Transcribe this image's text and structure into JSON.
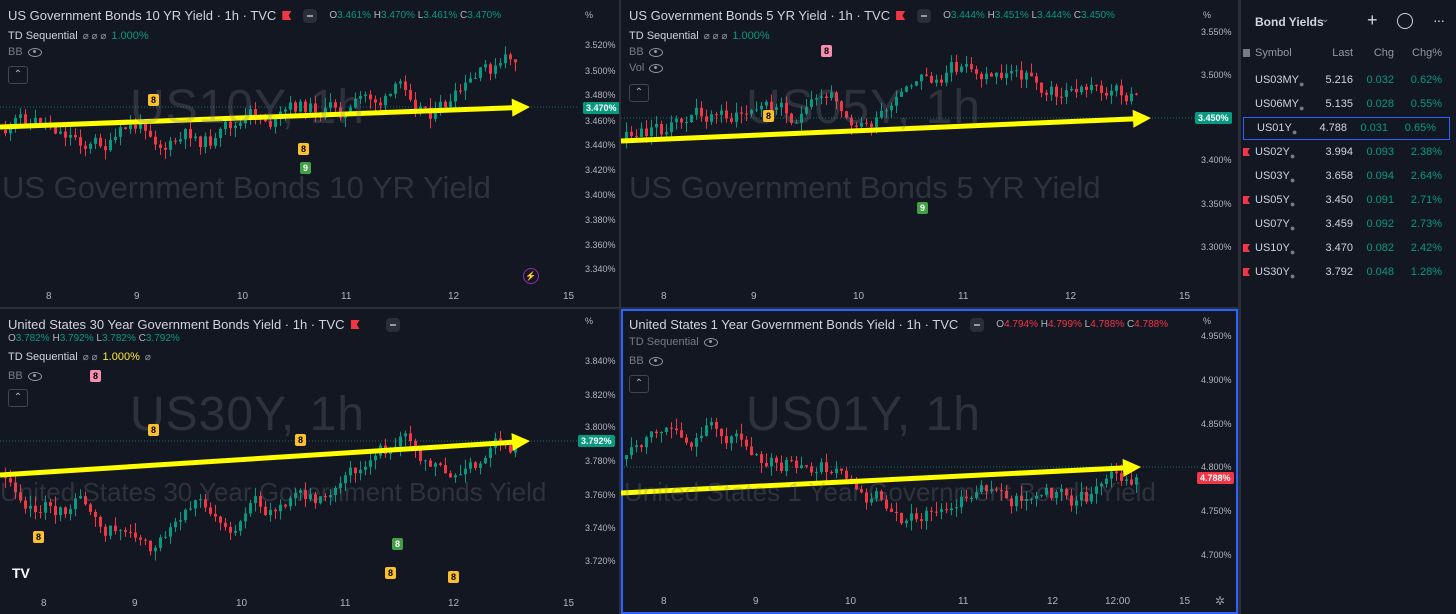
{
  "colors": {
    "up": "#089981",
    "down": "#f23645",
    "arrow": "#ffff00",
    "accent": "#2962ff",
    "bg": "#131722"
  },
  "panes": [
    {
      "title": "US Government Bonds 10 YR Yield · 1h · TVC",
      "ohlc": {
        "o": "3.461%",
        "h": "3.470%",
        "l": "3.461%",
        "c": "3.470%"
      },
      "indicators": {
        "td_label": "TD Sequential",
        "td_value": "1.000%",
        "bb_label": "BB",
        "vol_label": ""
      },
      "percent_label": "%",
      "y_ticks": [
        "3.520%",
        "3.500%",
        "3.480%",
        "3.460%",
        "3.440%",
        "3.420%",
        "3.400%",
        "3.380%",
        "3.360%",
        "3.340%"
      ],
      "price_tag": "3.470%",
      "x_ticks": [
        "8",
        "9",
        "10",
        "11",
        "12",
        "15"
      ],
      "watermark_big": "US10Y, 1h",
      "watermark_small": "US Government Bonds 10 YR Yield",
      "td_badges": [
        "8",
        "9",
        "8"
      ],
      "bolt_icon": "lightning-icon"
    },
    {
      "title": "US Government Bonds 5 YR Yield · 1h · TVC",
      "ohlc": {
        "o": "3.444%",
        "h": "3.451%",
        "l": "3.444%",
        "c": "3.450%"
      },
      "indicators": {
        "td_label": "TD Sequential",
        "td_value": "1.000%",
        "bb_label": "BB",
        "vol_label": "Vol"
      },
      "percent_label": "%",
      "y_ticks": [
        "3.550%",
        "3.500%",
        "3.450%",
        "3.400%",
        "3.350%",
        "3.300%"
      ],
      "price_tag": "3.450%",
      "x_ticks": [
        "8",
        "9",
        "10",
        "11",
        "12",
        "15"
      ],
      "watermark_big": "US05Y, 1h",
      "watermark_small": "US Government Bonds 5 YR Yield",
      "td_badges": [
        "8",
        "8",
        "9"
      ]
    },
    {
      "title": "United States 30 Year Government Bonds Yield · 1h · TVC",
      "ohlc": {
        "o": "3.782%",
        "h": "3.792%",
        "l": "3.782%",
        "c": "3.792%"
      },
      "indicators": {
        "td_label": "TD Sequential",
        "td_value": "1.000%",
        "bb_label": "BB",
        "vol_label": ""
      },
      "percent_label": "%",
      "y_ticks": [
        "3.840%",
        "3.820%",
        "3.800%",
        "3.780%",
        "3.760%",
        "3.740%",
        "3.720%"
      ],
      "price_tag": "3.792%",
      "x_ticks": [
        "8",
        "9",
        "10",
        "11",
        "12",
        "15"
      ],
      "watermark_big": "US30Y, 1h",
      "watermark_small": "United States 30 Year Government Bonds Yield",
      "td_badges": [
        "8",
        "8",
        "8",
        "8",
        "8",
        "8",
        "8"
      ],
      "logo": "TV"
    },
    {
      "title": "United States 1 Year Government Bonds Yield · 1h · TVC",
      "ohlc": {
        "o": "4.794%",
        "h": "4.799%",
        "l": "4.788%",
        "c": "4.788%"
      },
      "indicators": {
        "td_label": "TD Sequential",
        "td_value": "",
        "bb_label": "BB",
        "vol_label": ""
      },
      "percent_label": "%",
      "y_ticks": [
        "4.950%",
        "4.900%",
        "4.850%",
        "4.800%",
        "4.750%",
        "4.700%"
      ],
      "price_tag": "4.788%",
      "x_ticks": [
        "8",
        "9",
        "10",
        "11",
        "12",
        "12:00",
        "15"
      ],
      "watermark_big": "US01Y, 1h",
      "watermark_small": "United States 1 Year Government Bonds Yield"
    }
  ],
  "watchlist": {
    "title": "Bond Yields",
    "columns": {
      "symbol": "Symbol",
      "last": "Last",
      "chg": "Chg",
      "chgp": "Chg%"
    },
    "rows": [
      {
        "symbol": "US03MY",
        "last": "5.216",
        "chg": "0.032",
        "chgp": "0.62%",
        "flag": false,
        "selected": false
      },
      {
        "symbol": "US06MY",
        "last": "5.135",
        "chg": "0.028",
        "chgp": "0.55%",
        "flag": false,
        "selected": false
      },
      {
        "symbol": "US01Y",
        "last": "4.788",
        "chg": "0.031",
        "chgp": "0.65%",
        "flag": false,
        "selected": true
      },
      {
        "symbol": "US02Y",
        "last": "3.994",
        "chg": "0.093",
        "chgp": "2.38%",
        "flag": true,
        "selected": false
      },
      {
        "symbol": "US03Y",
        "last": "3.658",
        "chg": "0.094",
        "chgp": "2.64%",
        "flag": false,
        "selected": false
      },
      {
        "symbol": "US05Y",
        "last": "3.450",
        "chg": "0.091",
        "chgp": "2.71%",
        "flag": true,
        "selected": false
      },
      {
        "symbol": "US07Y",
        "last": "3.459",
        "chg": "0.092",
        "chgp": "2.73%",
        "flag": false,
        "selected": false
      },
      {
        "symbol": "US10Y",
        "last": "3.470",
        "chg": "0.082",
        "chgp": "2.42%",
        "flag": true,
        "selected": false
      },
      {
        "symbol": "US30Y",
        "last": "3.792",
        "chg": "0.048",
        "chgp": "1.28%",
        "flag": true,
        "selected": false
      }
    ]
  }
}
